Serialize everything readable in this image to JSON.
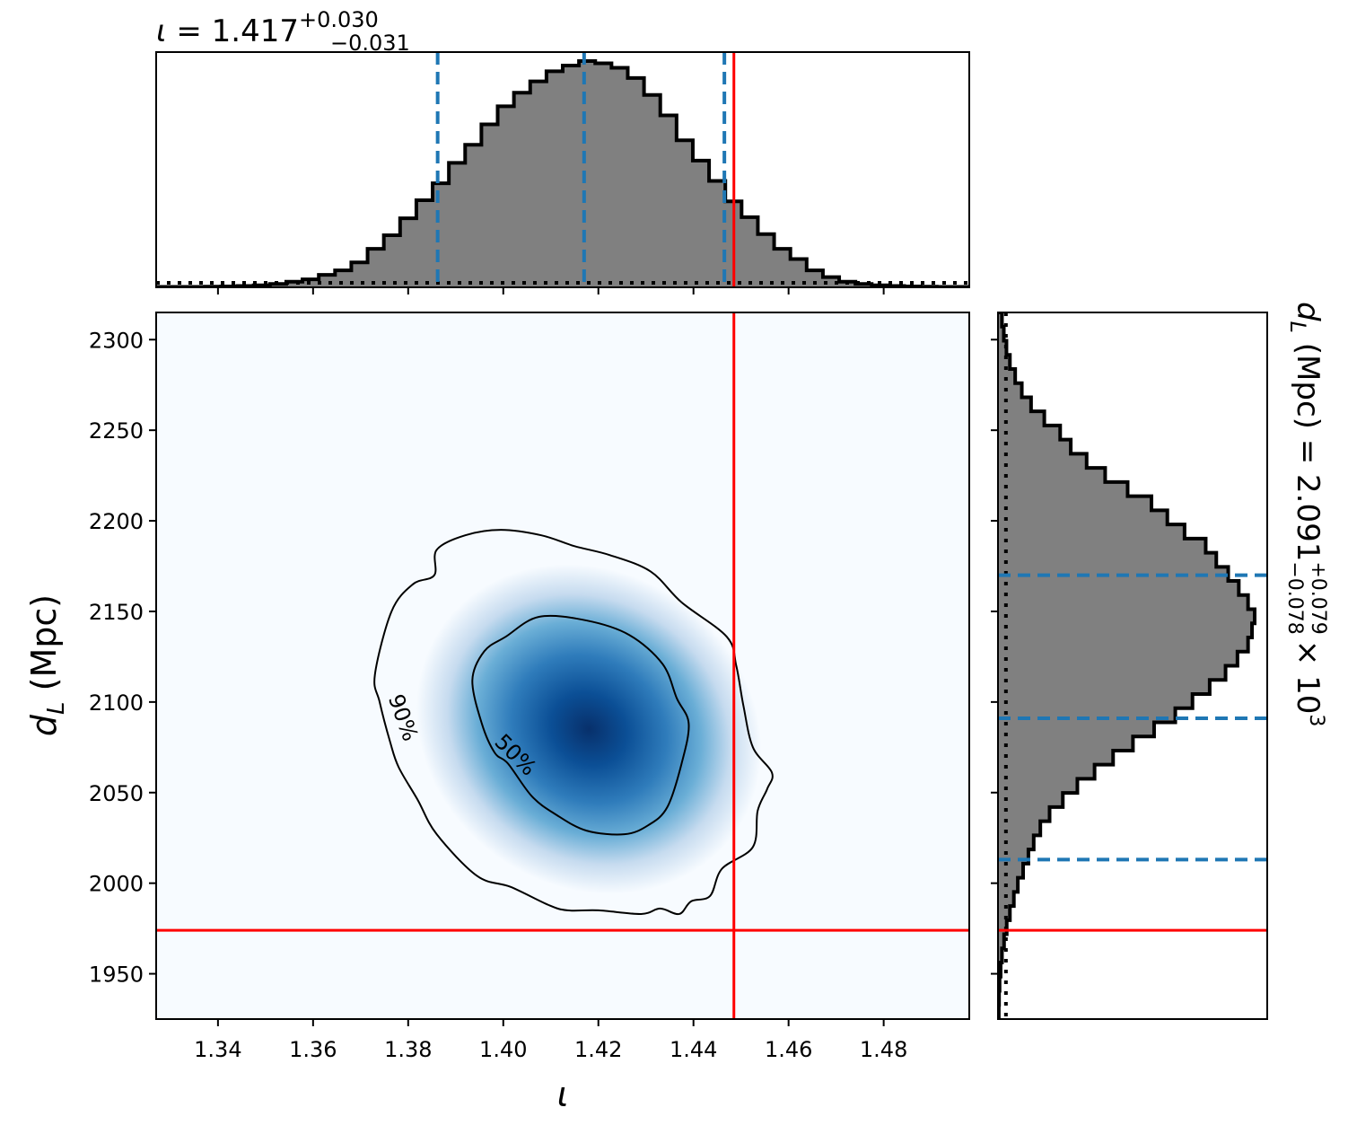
{
  "chart_data": [
    {
      "panel": "marginal-iota",
      "type": "histogram",
      "title": {
        "param": "ι",
        "value": "1.417",
        "plus": "+0.030",
        "minus": "−0.031"
      },
      "x_range": [
        1.327,
        1.498
      ],
      "bin_edges_start": 1.327,
      "bin_width": 0.00342,
      "counts": [
        0.2,
        0.2,
        0.2,
        0.3,
        0.4,
        0.6,
        0.9,
        1.5,
        2.5,
        3.5,
        5.5,
        7.5,
        11.0,
        17.0,
        23.0,
        30.5,
        38.5,
        46.0,
        55.0,
        63.0,
        72.0,
        80.0,
        86.0,
        91.0,
        95.5,
        98.0,
        100.0,
        99.0,
        97.0,
        92.5,
        85.0,
        76.0,
        65.0,
        56.0,
        47.0,
        38.0,
        31.0,
        23.5,
        17.0,
        12.5,
        7.5,
        4.5,
        2.5,
        1.5,
        0.9,
        0.6,
        0.4,
        0.3,
        0.2,
        0.2
      ],
      "quantile_lines": [
        1.3862,
        1.417,
        1.4465
      ],
      "truth": 1.4485,
      "prior_level": 2.0
    },
    {
      "panel": "joint",
      "type": "heatmap",
      "xlabel": "ι",
      "ylabel_symbol": "d",
      "ylabel_sub": "L",
      "ylabel_unit": " (Mpc)",
      "x_ticks": [
        "1.34",
        "1.36",
        "1.38",
        "1.40",
        "1.42",
        "1.44",
        "1.46",
        "1.48"
      ],
      "x_tick_values": [
        1.34,
        1.36,
        1.38,
        1.4,
        1.42,
        1.44,
        1.46,
        1.48
      ],
      "y_ticks": [
        "1950",
        "2000",
        "2050",
        "2100",
        "2150",
        "2200",
        "2250",
        "2300"
      ],
      "y_tick_values": [
        1950,
        2000,
        2050,
        2100,
        2150,
        2200,
        2250,
        2300
      ],
      "x_range": [
        1.327,
        1.498
      ],
      "y_range": [
        1925,
        2315
      ],
      "density_peak": {
        "x": 1.418,
        "y": 2085
      },
      "contour_labels": [
        "50%",
        "90%"
      ],
      "contour_50": [
        [
          1.4005,
          2136
        ],
        [
          1.4075,
          2147
        ],
        [
          1.4175,
          2145
        ],
        [
          1.4265,
          2137
        ],
        [
          1.4335,
          2121
        ],
        [
          1.4365,
          2102
        ],
        [
          1.439,
          2088
        ],
        [
          1.4375,
          2066
        ],
        [
          1.4345,
          2042
        ],
        [
          1.4305,
          2032
        ],
        [
          1.4255,
          2027
        ],
        [
          1.4175,
          2029
        ],
        [
          1.411,
          2038
        ],
        [
          1.406,
          2048
        ],
        [
          1.401,
          2066
        ],
        [
          1.3982,
          2072
        ],
        [
          1.3955,
          2088
        ],
        [
          1.3935,
          2112
        ],
        [
          1.396,
          2128
        ]
      ],
      "contour_90": [
        [
          1.386,
          2184
        ],
        [
          1.392,
          2192
        ],
        [
          1.3995,
          2195
        ],
        [
          1.408,
          2192
        ],
        [
          1.415,
          2186
        ],
        [
          1.4225,
          2181
        ],
        [
          1.431,
          2172
        ],
        [
          1.4375,
          2155
        ],
        [
          1.447,
          2136
        ],
        [
          1.449,
          2120
        ],
        [
          1.4505,
          2098
        ],
        [
          1.4525,
          2075
        ],
        [
          1.4565,
          2061
        ],
        [
          1.4555,
          2052
        ],
        [
          1.4535,
          2040
        ],
        [
          1.4525,
          2020
        ],
        [
          1.446,
          2008
        ],
        [
          1.4435,
          1993
        ],
        [
          1.4395,
          1990
        ],
        [
          1.437,
          1983
        ],
        [
          1.433,
          1986
        ],
        [
          1.429,
          1983
        ],
        [
          1.42,
          1985
        ],
        [
          1.4135,
          1985
        ],
        [
          1.4095,
          1988
        ],
        [
          1.4015,
          1998
        ],
        [
          1.3945,
          2004
        ],
        [
          1.386,
          2027
        ],
        [
          1.382,
          2046
        ],
        [
          1.378,
          2064
        ],
        [
          1.3762,
          2078
        ],
        [
          1.374,
          2100
        ],
        [
          1.373,
          2115
        ],
        [
          1.3765,
          2150
        ],
        [
          1.381,
          2165
        ],
        [
          1.3855,
          2170
        ]
      ],
      "truth": {
        "x": 1.4485,
        "y": 1974
      }
    },
    {
      "panel": "marginal-dL",
      "type": "histogram",
      "orientation": "horizontal",
      "side_title": {
        "param": "d",
        "sub": "L",
        "unit": " (Mpc) = 2.091",
        "plus": "+0.079",
        "minus": "−0.078",
        "scale": "× 10",
        "exp": "3"
      },
      "y_range": [
        1925,
        2315
      ],
      "bin_edges_start": 1925,
      "bin_width": 7.8,
      "counts": [
        0.3,
        0.4,
        0.6,
        1.0,
        1.5,
        2.3,
        3.3,
        4.5,
        6.0,
        7.5,
        9.5,
        11.5,
        13.5,
        16.0,
        19.5,
        24.5,
        30.0,
        36.5,
        43.5,
        51.0,
        59.0,
        67.0,
        73.5,
        80.0,
        86.0,
        90.5,
        94.5,
        96.0,
        97.0,
        94.5,
        91.0,
        87.0,
        82.5,
        78.5,
        70.5,
        64.0,
        58.0,
        49.0,
        40.5,
        33.5,
        27.5,
        23.5,
        17.5,
        12.5,
        9.0,
        6.5,
        4.5,
        3.2,
        2.2,
        1.5,
        1.0,
        0.6,
        0.4,
        0.3,
        0.2
      ],
      "quantile_lines": [
        2013,
        2091,
        2170
      ],
      "truth": 1974,
      "prior_level": 3.0
    }
  ]
}
